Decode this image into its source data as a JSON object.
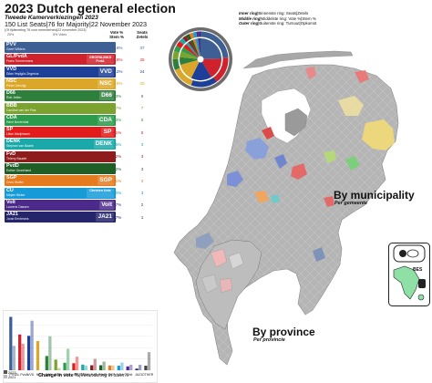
{
  "header": {
    "title": "2023 Dutch general election",
    "subtitle": "Tweede Kamerverkiezingen 2023",
    "seat_line": "150 List Seats|76 for Majority|22 November 2023",
    "date_line": "(Of tijdsmeting 76 voor meerderheid|22 november 2023)"
  },
  "ring_legend": {
    "inner_label": "Inner ring",
    "inner_text": "|Binnenste ring: Seats|Zetels",
    "middle_label": "Middle ring",
    "middle_text": "|Middelste ring: Vote %|Stem %",
    "outer_label": "Outer ring",
    "outer_text": "|Buitenste ring: Turnout|Opkomst"
  },
  "table_header": {
    "threshold_left": "25%",
    "threshold_mid": "5% Votes",
    "vote_col": "Vote %\nStem %",
    "seat_col": "Seats\nZetels"
  },
  "parties": [
    {
      "name": "PVV",
      "leader": "Geert Wilders",
      "logo": "",
      "vote": "23.6%",
      "seats": "37",
      "color": "#3e5f94"
    },
    {
      "name": "GL/PvdA",
      "leader": "Frans Timmermans",
      "logo": "GROENLINKS PvdA",
      "vote": "15.8%",
      "seats": "25",
      "color": "#d0222c"
    },
    {
      "name": "VVD",
      "leader": "Dilan Yeşilgöz-Zegerius",
      "logo": "VVD",
      "vote": "15.2%",
      "seats": "24",
      "color": "#1d3f97"
    },
    {
      "name": "NSC",
      "leader": "Pieter Omtzigt",
      "logo": "NSC",
      "vote": "12.9%",
      "seats": "20",
      "color": "#dba72a"
    },
    {
      "name": "D66",
      "leader": "Rob Jetten",
      "logo": "D66",
      "vote": "6.3%",
      "seats": "9",
      "color": "#2e7f3c"
    },
    {
      "name": "BBB",
      "leader": "Caroline van der Plas",
      "logo": "",
      "vote": "4.7%",
      "seats": "7",
      "color": "#7ca32e"
    },
    {
      "name": "CDA",
      "leader": "Henri Bontenbal",
      "logo": "CDA",
      "vote": "3.3%",
      "seats": "5",
      "color": "#2c9b4b"
    },
    {
      "name": "SP",
      "leader": "Lilian Marijnissen",
      "logo": "SP",
      "vote": "3.1%",
      "seats": "5",
      "color": "#e21b1b"
    },
    {
      "name": "DENK",
      "leader": "Stephan van Baarle",
      "logo": "DENK",
      "vote": "2.5%",
      "seats": "3",
      "color": "#1aa8a8"
    },
    {
      "name": "FvD",
      "leader": "Thierry Baudet",
      "logo": "",
      "vote": "2.2%",
      "seats": "3",
      "color": "#8e1c1c"
    },
    {
      "name": "PvdD",
      "leader": "Esther Ouwehand",
      "logo": "",
      "vote": "2.2%",
      "seats": "3",
      "color": "#1f5f26"
    },
    {
      "name": "SGP",
      "leader": "Chris Stoffer",
      "logo": "SGP",
      "vote": "2.1%",
      "seats": "3",
      "color": "#e57a1f"
    },
    {
      "name": "CU",
      "leader": "Mirjam Bikker",
      "logo": "Christen Unie",
      "vote": "2.0%",
      "seats": "3",
      "color": "#169bd6"
    },
    {
      "name": "Volt",
      "leader": "Laurens Dassen",
      "logo": "Volt",
      "vote": "1.7%",
      "seats": "2",
      "color": "#4b2a8c"
    },
    {
      "name": "JA21",
      "leader": "Joost Eerdmans",
      "logo": "JA21",
      "vote": "0.7%",
      "seats": "1",
      "color": "#24256b"
    }
  ],
  "map_labels": {
    "by_municipality": "By municipality",
    "by_municipality_sub": "Per gemeente",
    "by_province": "By province",
    "by_province_sub": "Per provincie",
    "bes": "BES"
  },
  "chart_data": {
    "type": "bar",
    "categories": [
      "PVV",
      "GL PvdA",
      "VVD",
      "NSC",
      "D66",
      "BBB",
      "CDA",
      "SP",
      "DENK",
      "FvD",
      "PvdD",
      "SGP",
      "CU",
      "Volt",
      "JA21",
      "OTHER"
    ],
    "series": [
      {
        "name": "2023",
        "values": [
          23.6,
          15.8,
          15.2,
          12.9,
          6.3,
          4.7,
          3.3,
          3.1,
          2.5,
          2.2,
          2.2,
          2.1,
          2.0,
          1.7,
          0.7,
          2.0
        ]
      },
      {
        "name": "2021",
        "values": [
          10.8,
          11.7,
          21.9,
          0,
          15.0,
          1.0,
          9.5,
          6.0,
          2.0,
          5.0,
          3.8,
          2.1,
          3.4,
          2.4,
          2.4,
          8.0
        ]
      }
    ],
    "ylim": [
      0,
      25
    ],
    "caption": "Change in vote %",
    "caption_alt": "|Verandering in stem%",
    "legend": [
      "2023",
      "2021"
    ]
  }
}
